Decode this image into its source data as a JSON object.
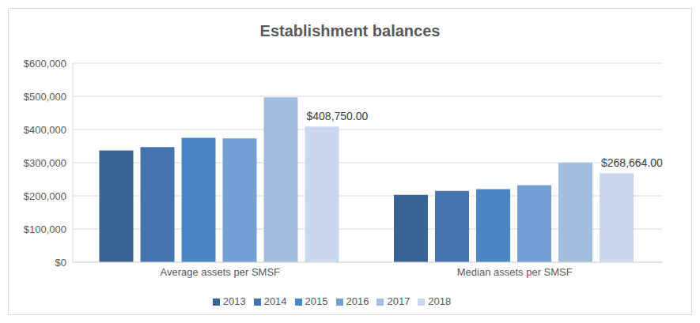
{
  "chart_data": {
    "type": "bar",
    "title": "Establishment balances",
    "categories": [
      "Average assets per SMSF",
      "Median assets per SMSF"
    ],
    "series": [
      {
        "name": "2013",
        "color": "#3a6494",
        "values": [
          337000,
          203000
        ]
      },
      {
        "name": "2014",
        "color": "#4474ab",
        "values": [
          347000,
          215000
        ]
      },
      {
        "name": "2015",
        "color": "#4a86c5",
        "values": [
          375000,
          220000
        ]
      },
      {
        "name": "2016",
        "color": "#72a0d2",
        "values": [
          373000,
          232000
        ]
      },
      {
        "name": "2017",
        "color": "#a3bfdf",
        "values": [
          497000,
          300000
        ]
      },
      {
        "name": "2018",
        "color": "#c9d8ec",
        "values": [
          408750,
          268664
        ],
        "value_labels": [
          "$408,750.00",
          "$268,664.00"
        ]
      }
    ],
    "ylim": [
      0,
      600000
    ],
    "yticks": [
      {
        "value": 0,
        "label": "$0"
      },
      {
        "value": 100000,
        "label": "$100,000"
      },
      {
        "value": 200000,
        "label": "$200,000"
      },
      {
        "value": 300000,
        "label": "$300,000"
      },
      {
        "value": 400000,
        "label": "$400,000"
      },
      {
        "value": 500000,
        "label": "$500,000"
      },
      {
        "value": 600000,
        "label": "$600,000"
      }
    ],
    "grid": true,
    "legend": "bottom"
  }
}
